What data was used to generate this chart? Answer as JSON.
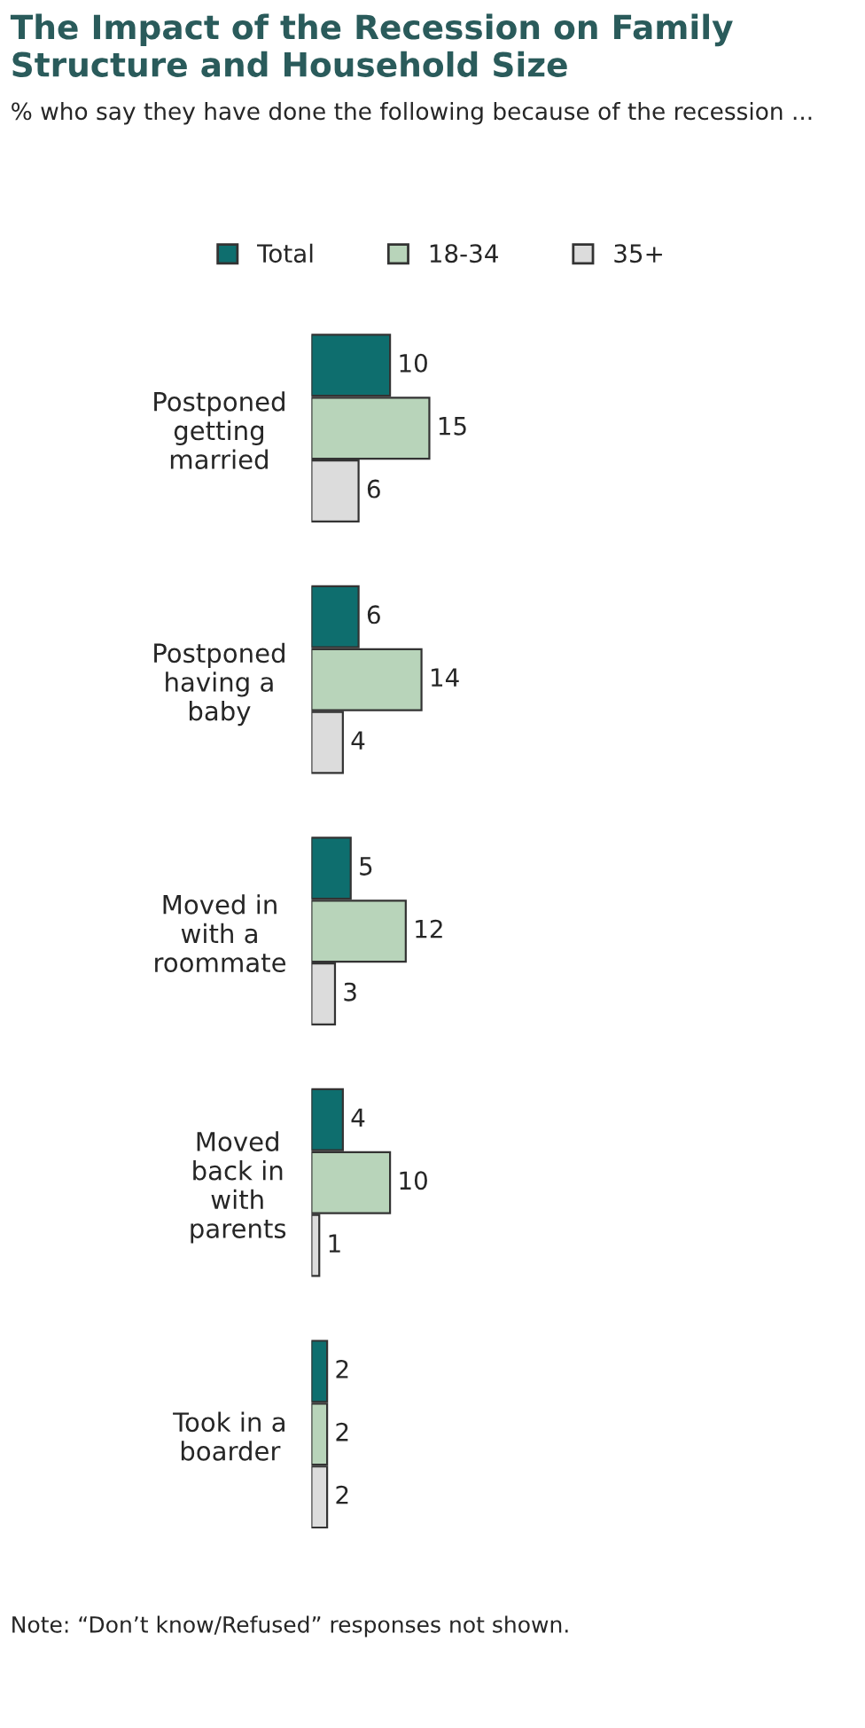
{
  "chart_data": {
    "type": "bar",
    "orientation": "horizontal",
    "title": "The Impact of the Recession on Family Structure and Household Size",
    "subtitle": "% who say they have done the following because of the recession ...",
    "categories": [
      "Postponed\ngetting\nmarried",
      "Postponed\nhaving a\nbaby",
      "Moved in\nwith a\nroommate",
      "Moved\nback in\nwith\nparents",
      "Took in a\nboarder"
    ],
    "series": [
      {
        "name": "Total",
        "color": "#0e6e6e",
        "values": [
          10,
          6,
          5,
          4,
          2
        ]
      },
      {
        "name": "18-34",
        "color": "#b8d4ba",
        "values": [
          15,
          14,
          12,
          10,
          2
        ]
      },
      {
        "name": "35+",
        "color": "#dcdcdc",
        "values": [
          6,
          4,
          3,
          1,
          2
        ]
      }
    ],
    "data_labels": true,
    "legend": "top",
    "grid": false,
    "annotations": [
      "Note: “Don’t know/Refused” responses not shown."
    ]
  }
}
